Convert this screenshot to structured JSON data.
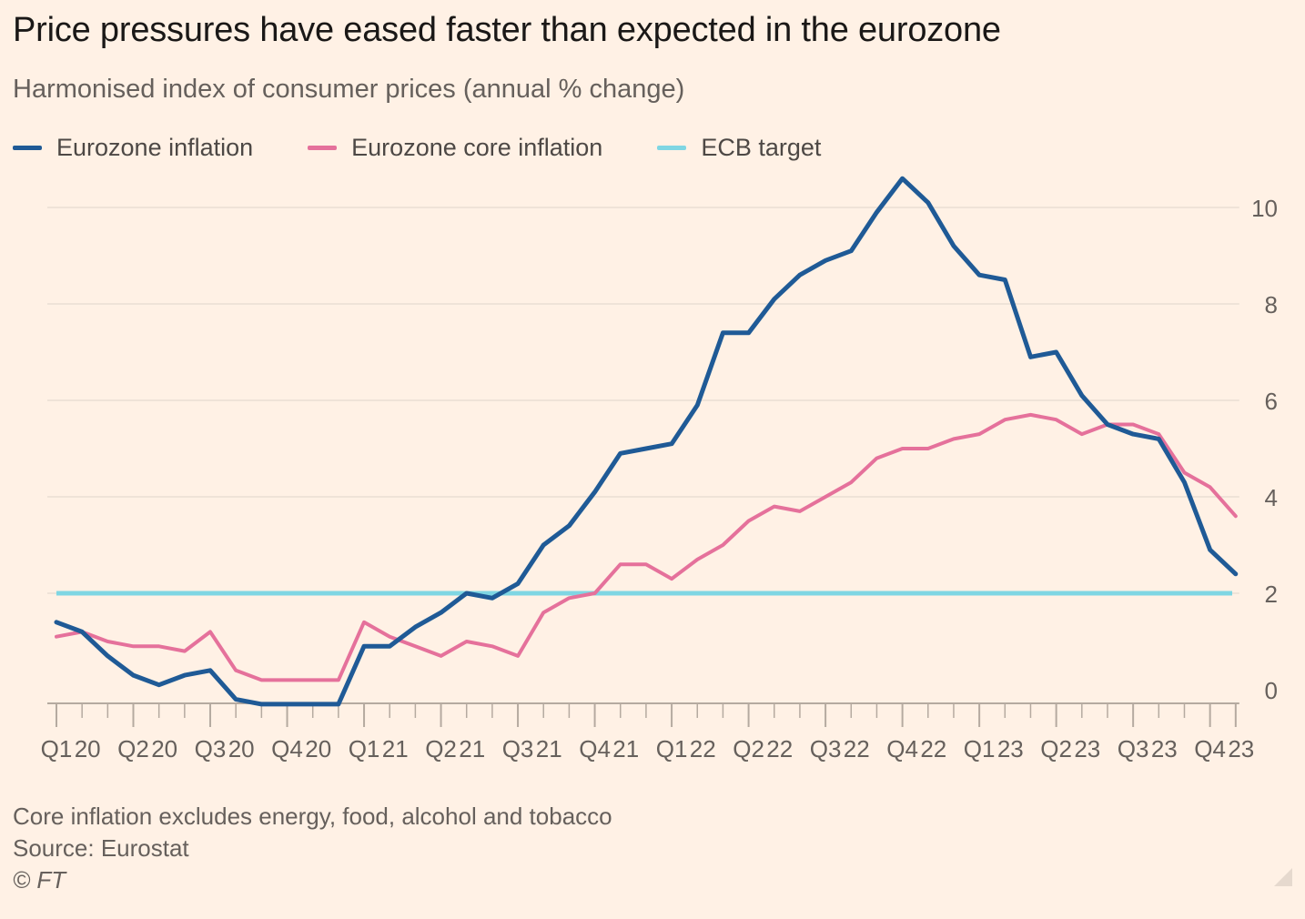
{
  "header": {
    "title": "Price pressures have eased faster than expected in the eurozone",
    "subtitle": "Harmonised index of consumer prices (annual % change)"
  },
  "footer": {
    "note": "Core inflation excludes energy, food, alcohol and tobacco",
    "source": "Source: Eurostat",
    "copyright": "© FT"
  },
  "colors": {
    "headline": "#1F5A96",
    "core": "#E5719B",
    "target": "#7FD6E3",
    "grid": "#EFE3D8",
    "axis": "#B5AAA0",
    "tick_text": "#66605C"
  },
  "chart_data": {
    "type": "line",
    "x_start": "2020-01",
    "x_frequency": "monthly",
    "x_tick_labels": [
      "Q1 20",
      "Q2 20",
      "Q3 20",
      "Q4 20",
      "Q1 21",
      "Q2 21",
      "Q3 21",
      "Q4 21",
      "Q1 22",
      "Q2 22",
      "Q3 22",
      "Q4 22",
      "Q1 23",
      "Q2 23",
      "Q3 23",
      "Q4 23"
    ],
    "y_ticks": [
      0,
      2,
      4,
      6,
      8,
      10
    ],
    "ylim": [
      -0.5,
      11
    ],
    "y_axis_side": "right",
    "grid": true,
    "legend_position": "top-left",
    "series": [
      {
        "name": "Eurozone inflation",
        "color_key": "headline",
        "values": [
          1.4,
          1.2,
          0.7,
          0.3,
          0.1,
          0.3,
          0.4,
          -0.2,
          -0.3,
          -0.3,
          -0.3,
          -0.3,
          0.9,
          0.9,
          1.3,
          1.6,
          2.0,
          1.9,
          2.2,
          3.0,
          3.4,
          4.1,
          4.9,
          5.0,
          5.1,
          5.9,
          7.4,
          7.4,
          8.1,
          8.6,
          8.9,
          9.1,
          9.9,
          10.6,
          10.1,
          9.2,
          8.6,
          8.5,
          6.9,
          7.0,
          6.1,
          5.5,
          5.3,
          5.2,
          4.3,
          2.9,
          2.4
        ]
      },
      {
        "name": "Eurozone core inflation",
        "color_key": "core",
        "values": [
          1.1,
          1.2,
          1.0,
          0.9,
          0.9,
          0.8,
          1.2,
          0.4,
          0.2,
          0.2,
          0.2,
          0.2,
          1.4,
          1.1,
          0.9,
          0.7,
          1.0,
          0.9,
          0.7,
          1.6,
          1.9,
          2.0,
          2.6,
          2.6,
          2.3,
          2.7,
          3.0,
          3.5,
          3.8,
          3.7,
          4.0,
          4.3,
          4.8,
          5.0,
          5.0,
          5.2,
          5.3,
          5.6,
          5.7,
          5.6,
          5.3,
          5.5,
          5.5,
          5.3,
          4.5,
          4.2,
          3.6
        ]
      },
      {
        "name": "ECB target",
        "color_key": "target",
        "constant": 2
      }
    ]
  }
}
